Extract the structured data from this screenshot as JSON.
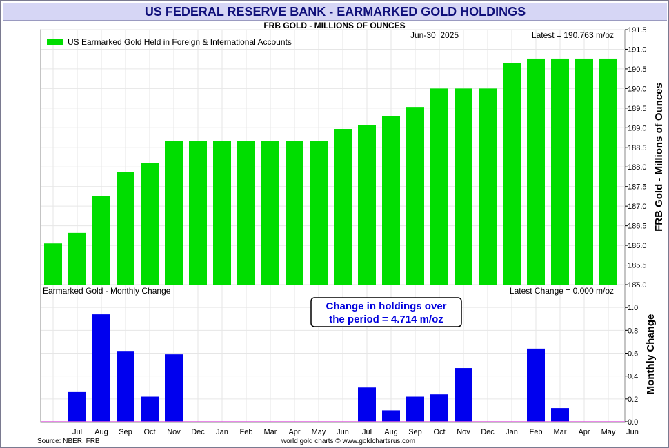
{
  "title": "US FEDERAL RESERVE BANK - EARMARKED GOLD HOLDINGS",
  "subtitle": "FRB GOLD - MILLIONS OF OUNCES",
  "date_label": "Jun-30  2025",
  "latest_label": "Latest = 190.763 m/oz",
  "upper_legend": "US Earmarked Gold Held in Foreign & International Accounts",
  "upper_ylabel": "FRB Gold - Millions of Ounces",
  "lower_title": "Earmarked Gold - Monthly Change",
  "lower_latest_label": "Latest Change = 0.000 m/oz",
  "lower_ylabel": "Monthly Change",
  "callout": {
    "line1": "Change in holdings over",
    "line2": "the period = 4.714 m/oz"
  },
  "source": "Source: NBER, FRB",
  "credit": "world gold charts © www.goldchartsrus.com",
  "colors": {
    "upper_bar": "#00dd00",
    "lower_bar": "#0000ee",
    "callout_text": "#0000dd",
    "title_text": "#10107a",
    "zero_line": "#e060e0"
  },
  "chart_data": [
    {
      "type": "bar",
      "title": "US Earmarked Gold Held in Foreign & International Accounts",
      "ylabel": "FRB Gold - Millions of Ounces",
      "ylim": [
        185.0,
        191.5
      ],
      "yticks": [
        "191.5",
        "191.0",
        "190.5",
        "190.0",
        "189.5",
        "189.0",
        "188.5",
        "188.0",
        "187.5",
        "187.0",
        "186.5",
        "186.0",
        "185.5",
        "185.0"
      ],
      "ytick_values": [
        191.5,
        191.0,
        190.5,
        190.0,
        189.5,
        189.0,
        188.5,
        188.0,
        187.5,
        187.0,
        186.5,
        186.0,
        185.5,
        185.0
      ],
      "values": [
        186.05,
        186.32,
        187.26,
        187.88,
        188.1,
        188.67,
        188.67,
        188.67,
        188.67,
        188.67,
        188.67,
        188.67,
        188.97,
        189.07,
        189.29,
        189.53,
        190.0,
        190.0,
        190.0,
        190.64,
        190.763,
        190.763,
        190.763,
        190.763
      ],
      "grid": true,
      "legend_position": "top-left"
    },
    {
      "type": "bar",
      "title": "Earmarked Gold - Monthly Change",
      "ylabel": "Monthly Change",
      "ylim": [
        0.0,
        1.2
      ],
      "yticks": [
        "1.2",
        "1.0",
        "0.8",
        "0.6",
        "0.4",
        "0.2",
        "0.0"
      ],
      "ytick_values": [
        1.2,
        1.0,
        0.8,
        0.6,
        0.4,
        0.2,
        0.0
      ],
      "categories": [
        "",
        "Jul",
        "Aug",
        "Sep",
        "Oct",
        "Nov",
        "Dec",
        "Jan",
        "Feb",
        "Mar",
        "Apr",
        "May",
        "Jun",
        "Jul",
        "Aug",
        "Sep",
        "Oct",
        "Nov",
        "Dec",
        "Jan",
        "Feb",
        "Mar",
        "Apr",
        "May",
        "Jun"
      ],
      "values": [
        0.0,
        0.26,
        0.94,
        0.62,
        0.22,
        0.59,
        0.0,
        0.0,
        0.0,
        0.0,
        0.0,
        0.0,
        0.0,
        0.3,
        0.1,
        0.22,
        0.24,
        0.47,
        0.0,
        0.0,
        0.64,
        0.12,
        0.0,
        0.0,
        0.0
      ],
      "grid": true
    }
  ]
}
